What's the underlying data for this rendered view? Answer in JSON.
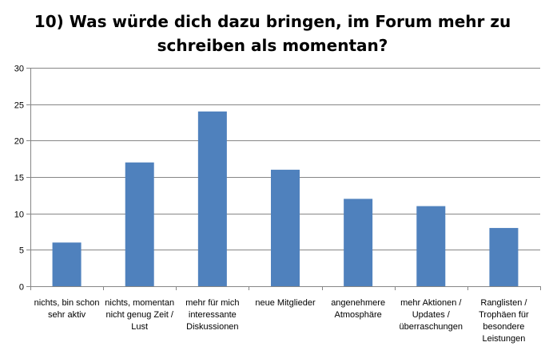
{
  "chart_data": {
    "type": "bar",
    "title_lines": [
      "10) Was würde dich dazu bringen, im Forum mehr zu",
      "schreiben als momentan?"
    ],
    "categories": [
      "nichts, bin schon sehr aktiv",
      "nichts, momentan nicht genug Zeit / Lust",
      "mehr für mich interessante Diskussionen",
      "neue Mitglieder",
      "angenehmere Atmosphäre",
      "mehr Aktionen / Updates / überraschungen",
      "Ranglisten / Trophäen für besondere Leistungen"
    ],
    "values": [
      6,
      17,
      24,
      16,
      12,
      11,
      8
    ],
    "ylim": [
      0,
      30
    ],
    "yticks": [
      0,
      5,
      10,
      15,
      20,
      25,
      30
    ],
    "grid": true,
    "legend": "none",
    "bar_color": "#4f81bd",
    "grid_color": "#868686"
  }
}
